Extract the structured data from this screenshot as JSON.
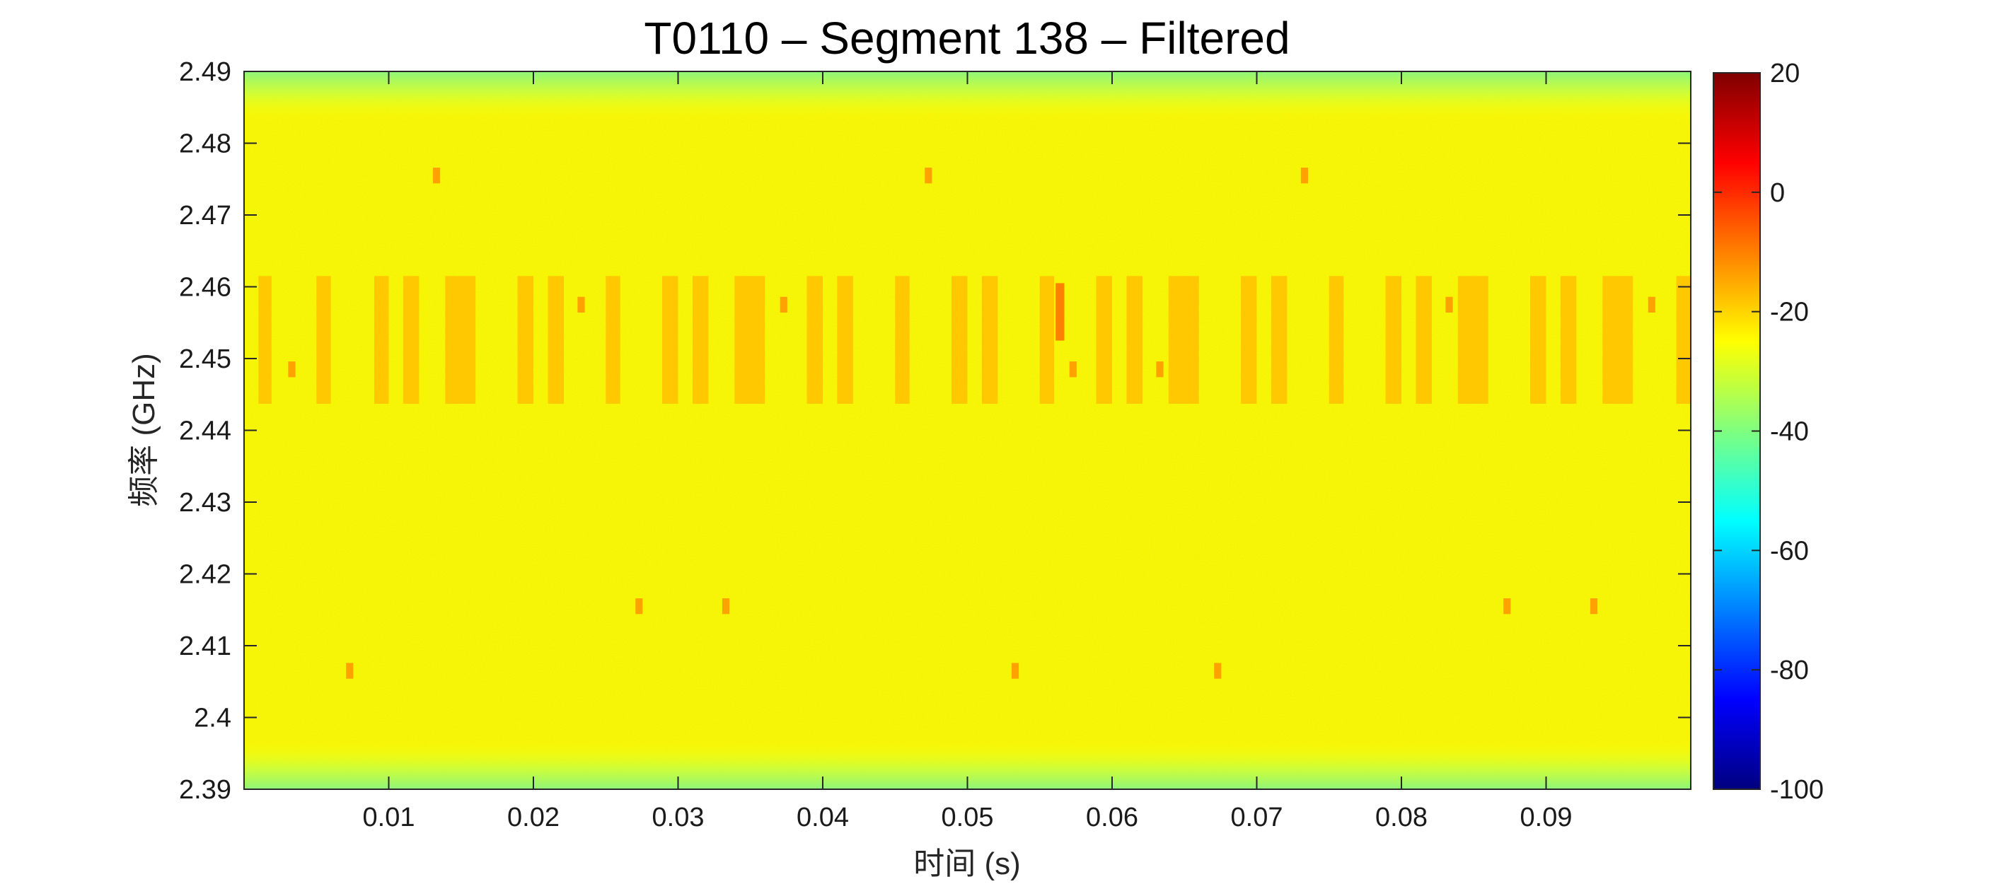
{
  "chart_data": {
    "type": "heatmap",
    "title": "T0110 – Segment 138 – Filtered",
    "xlabel": "时间 (s)",
    "ylabel": "频率 (GHz)",
    "xlim": [
      0,
      0.1
    ],
    "ylim": [
      2.39,
      2.49
    ],
    "x_ticks": [
      "0.01",
      "0.02",
      "0.03",
      "0.04",
      "0.05",
      "0.06",
      "0.07",
      "0.08",
      "0.09"
    ],
    "x_tick_values": [
      0.01,
      0.02,
      0.03,
      0.04,
      0.05,
      0.06,
      0.07,
      0.08,
      0.09
    ],
    "y_ticks": [
      "2.39",
      "2.4",
      "2.41",
      "2.42",
      "2.43",
      "2.44",
      "2.45",
      "2.46",
      "2.47",
      "2.48",
      "2.49"
    ],
    "y_tick_values": [
      2.39,
      2.4,
      2.41,
      2.42,
      2.43,
      2.44,
      2.45,
      2.46,
      2.47,
      2.48,
      2.49
    ],
    "colorbar": {
      "colormap": "jet",
      "range": [
        -100,
        20
      ],
      "ticks": [
        "20",
        "0",
        "-20",
        "-40",
        "-60",
        "-80",
        "-100"
      ],
      "tick_values": [
        20,
        0,
        -20,
        -40,
        -60,
        -80,
        -100
      ]
    },
    "background_level": -26,
    "edge_level": -36,
    "wideband_band": {
      "freq_range": [
        2.4437,
        2.4615
      ],
      "level": -18,
      "bursts": [
        [
          0.001,
          0.0019
        ],
        [
          0.005,
          0.006
        ],
        [
          0.009,
          0.01
        ],
        [
          0.011,
          0.0121
        ],
        [
          0.0139,
          0.016
        ],
        [
          0.0189,
          0.02
        ],
        [
          0.021,
          0.0221
        ],
        [
          0.025,
          0.026
        ],
        [
          0.0289,
          0.03
        ],
        [
          0.031,
          0.0321
        ],
        [
          0.0339,
          0.036
        ],
        [
          0.0389,
          0.04
        ],
        [
          0.041,
          0.0421
        ],
        [
          0.045,
          0.046
        ],
        [
          0.0489,
          0.05
        ],
        [
          0.051,
          0.0521
        ],
        [
          0.055,
          0.056
        ],
        [
          0.0589,
          0.06
        ],
        [
          0.061,
          0.0621
        ],
        [
          0.0639,
          0.066
        ],
        [
          0.0689,
          0.07
        ],
        [
          0.071,
          0.0721
        ],
        [
          0.075,
          0.076
        ],
        [
          0.0789,
          0.08
        ],
        [
          0.081,
          0.0821
        ],
        [
          0.0839,
          0.086
        ],
        [
          0.0889,
          0.09
        ],
        [
          0.091,
          0.0921
        ],
        [
          0.0939,
          0.096
        ],
        [
          0.099,
          0.1
        ]
      ],
      "strong_burst": {
        "time": [
          0.0561,
          0.0567
        ],
        "freq_range": [
          2.4525,
          2.4605
        ],
        "level": -10
      }
    },
    "narrowband_hops": [
      {
        "t": 0.0033,
        "f": 2.4485,
        "level": -14
      },
      {
        "t": 0.0073,
        "f": 2.4065,
        "level": -14
      },
      {
        "t": 0.0133,
        "f": 2.4755,
        "level": -14
      },
      {
        "t": 0.0233,
        "f": 2.4575,
        "level": -14
      },
      {
        "t": 0.0273,
        "f": 2.4155,
        "level": -14
      },
      {
        "t": 0.0333,
        "f": 2.4155,
        "level": -14
      },
      {
        "t": 0.0373,
        "f": 2.4575,
        "level": -14
      },
      {
        "t": 0.0473,
        "f": 2.4755,
        "level": -14
      },
      {
        "t": 0.0533,
        "f": 2.4065,
        "level": -14
      },
      {
        "t": 0.0573,
        "f": 2.4485,
        "level": -14
      },
      {
        "t": 0.0633,
        "f": 2.4485,
        "level": -14
      },
      {
        "t": 0.0673,
        "f": 2.4065,
        "level": -14
      },
      {
        "t": 0.0733,
        "f": 2.4755,
        "level": -14
      },
      {
        "t": 0.0833,
        "f": 2.4575,
        "level": -14
      },
      {
        "t": 0.0873,
        "f": 2.4155,
        "level": -14
      },
      {
        "t": 0.0933,
        "f": 2.4155,
        "level": -14
      },
      {
        "t": 0.0973,
        "f": 2.4575,
        "level": -14
      }
    ]
  }
}
